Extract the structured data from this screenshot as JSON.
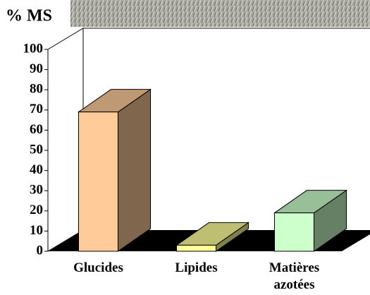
{
  "chart_data": {
    "type": "bar3d",
    "y_label": "% MS",
    "categories": [
      "Glucides",
      "Lipides",
      "Matières azotées"
    ],
    "values": [
      69,
      3,
      19
    ],
    "colors": [
      "#ffcc99",
      "#ffff99",
      "#ccffcc"
    ],
    "ylim": [
      0,
      100
    ],
    "yticks": [
      0,
      10,
      20,
      30,
      40,
      50,
      60,
      70,
      80,
      90,
      100
    ]
  }
}
